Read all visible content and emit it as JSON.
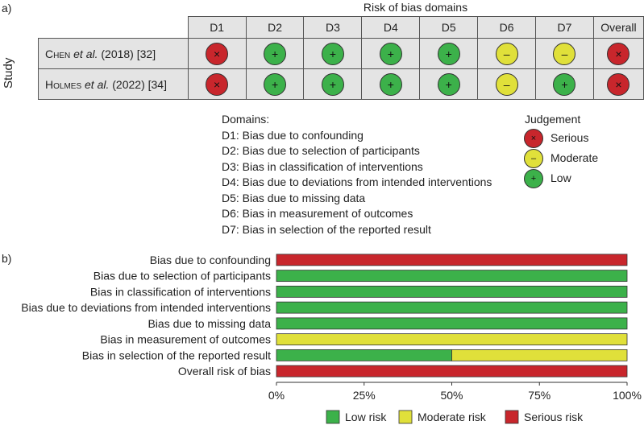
{
  "panel_a_label": "a)",
  "panel_b_label": "b)",
  "traffic_light": {
    "title": "Risk of bias domains",
    "y_label": "Study",
    "columns": [
      "D1",
      "D2",
      "D3",
      "D4",
      "D5",
      "D6",
      "D7",
      "Overall"
    ],
    "studies": [
      {
        "author": "Chen",
        "etal": "et al.",
        "year": "(2018) [32]",
        "judgements": [
          "serious",
          "low",
          "low",
          "low",
          "low",
          "moderate",
          "moderate",
          "serious"
        ]
      },
      {
        "author": "Holmes",
        "etal": "et al.",
        "year": "(2022) [34]",
        "judgements": [
          "serious",
          "low",
          "low",
          "low",
          "low",
          "moderate",
          "low",
          "serious"
        ]
      }
    ],
    "symbols": {
      "serious": "×",
      "moderate": "–",
      "low": "+"
    },
    "colors": {
      "serious": "#c8262c",
      "moderate": "#e0e03a",
      "low": "#3cb14a"
    }
  },
  "domains_legend": {
    "heading": "Domains:",
    "items": [
      "D1: Bias due to confounding",
      "D2: Bias due to selection of participants",
      "D3: Bias in classification of interventions",
      "D4: Bias due to deviations from intended interventions",
      "D5: Bias due to missing data",
      "D6: Bias in measurement of outcomes",
      "D7: Bias in selection of the reported result"
    ]
  },
  "judgement_legend": {
    "heading": "Judgement",
    "items": [
      {
        "key": "serious",
        "label": "Serious"
      },
      {
        "key": "moderate",
        "label": "Moderate"
      },
      {
        "key": "low",
        "label": "Low"
      }
    ]
  },
  "chart_data": {
    "type": "bar",
    "orientation": "horizontal-stacked-100",
    "categories": [
      "Bias due to confounding",
      "Bias due to selection of participants",
      "Bias in classification of interventions",
      "Bias due to deviations from intended interventions",
      "Bias due to missing data",
      "Bias in measurement of outcomes",
      "Bias in selection of the reported result",
      "Overall risk of bias"
    ],
    "series": [
      {
        "name": "Low risk",
        "color": "#3cb14a",
        "values": [
          0,
          100,
          100,
          100,
          100,
          0,
          50,
          0
        ]
      },
      {
        "name": "Moderate risk",
        "color": "#e0e03a",
        "values": [
          0,
          0,
          0,
          0,
          0,
          100,
          50,
          0
        ]
      },
      {
        "name": "Serious risk",
        "color": "#c8262c",
        "values": [
          100,
          0,
          0,
          0,
          0,
          0,
          0,
          100
        ]
      }
    ],
    "xlim": [
      0,
      100
    ],
    "x_ticks": [
      "0%",
      "25%",
      "50%",
      "75%",
      "100%"
    ],
    "legend_position": "bottom"
  }
}
